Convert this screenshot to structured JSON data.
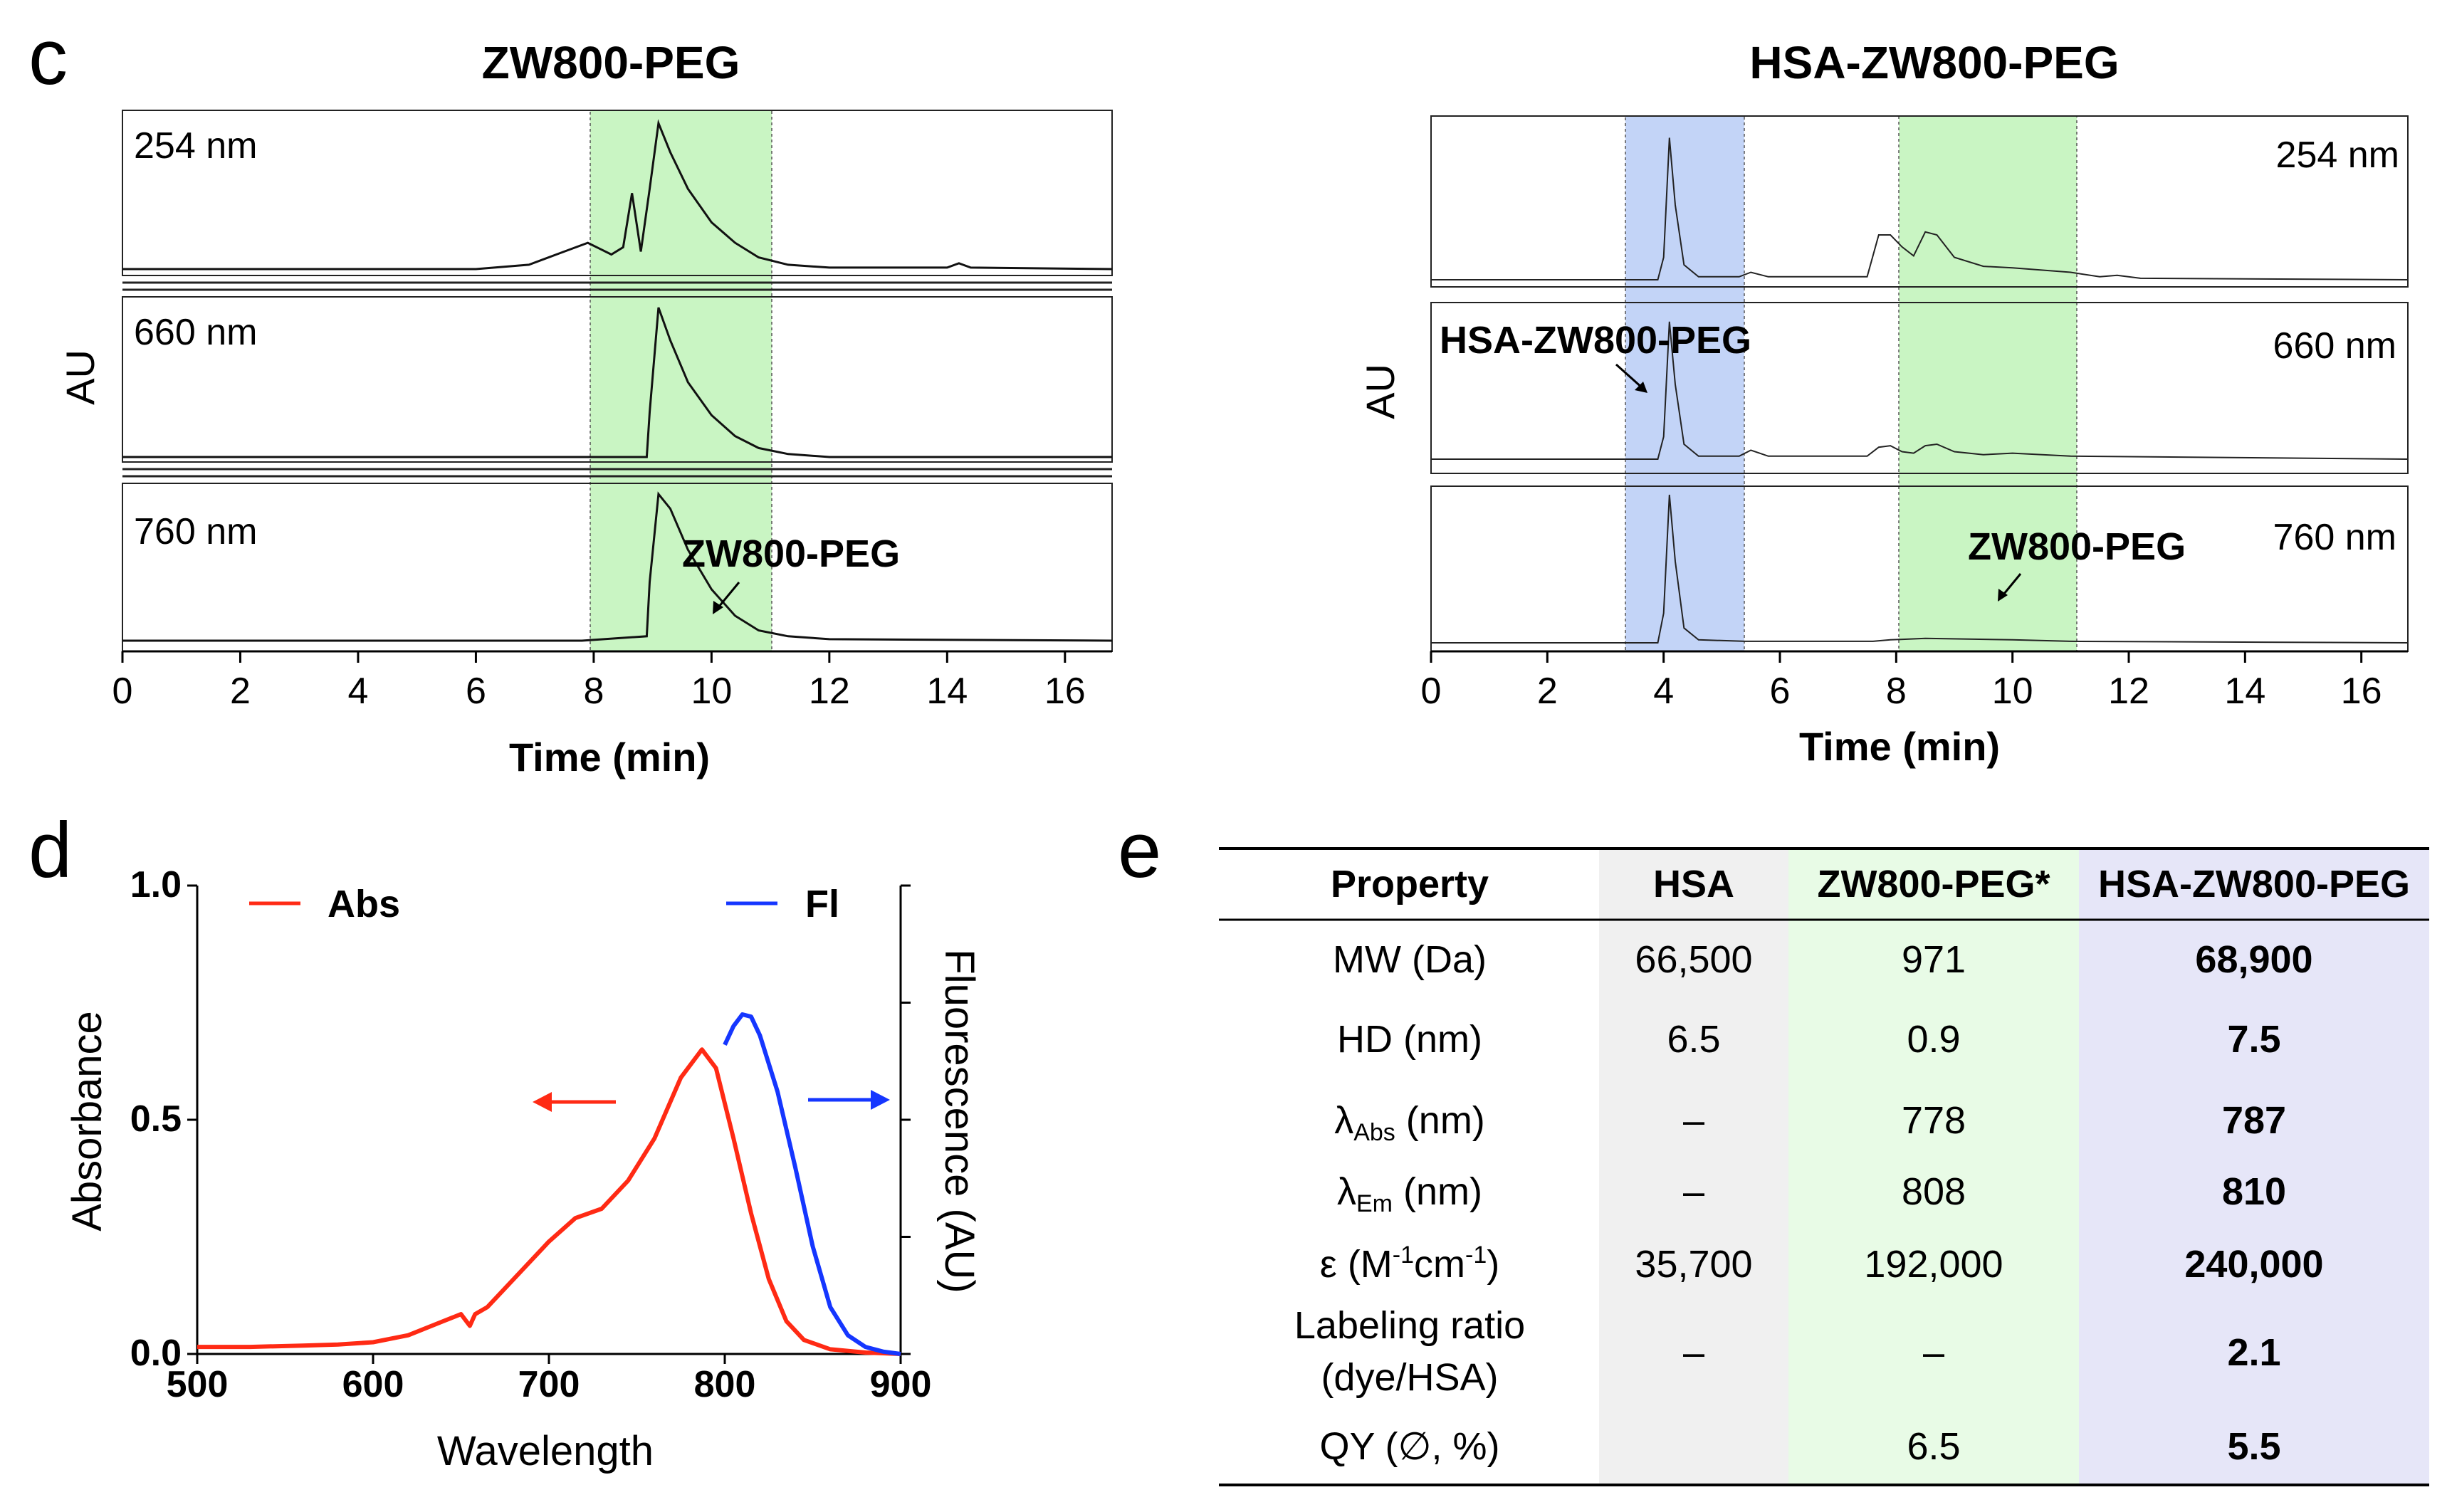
{
  "panels": {
    "c": "c",
    "d": "d",
    "e": "e"
  },
  "colors": {
    "green_band": "#c9f5c3",
    "blue_band": "#c3d4f7",
    "abs": "#ff2a14",
    "fl": "#1536ff",
    "col_hsa": "#f0f0f0",
    "col_zw": "#e8fbe6",
    "col_hsazw": "#e6e6f8"
  },
  "chart_data": [
    {
      "id": "hplc-zw800-peg",
      "type": "line",
      "title": "ZW800-PEG",
      "xlabel": "Time (min)",
      "ylabel": "AU",
      "xlim": [
        0,
        16.8
      ],
      "x_ticks": [
        "0",
        "2",
        "4",
        "6",
        "8",
        "10",
        "12",
        "14",
        "16"
      ],
      "highlight_ranges": [
        {
          "from": 8.1,
          "to": 11.2,
          "color": "green"
        }
      ],
      "channels": [
        {
          "label": "254 nm",
          "trace": [
            [
              0,
              0
            ],
            [
              6.0,
              0
            ],
            [
              6.9,
              0.03
            ],
            [
              7.5,
              0.12
            ],
            [
              7.9,
              0.18
            ],
            [
              8.1,
              0.14
            ],
            [
              8.3,
              0.1
            ],
            [
              8.5,
              0.15
            ],
            [
              8.65,
              0.52
            ],
            [
              8.8,
              0.12
            ],
            [
              8.95,
              0.55
            ],
            [
              9.1,
              1.0
            ],
            [
              9.3,
              0.8
            ],
            [
              9.6,
              0.55
            ],
            [
              10.0,
              0.32
            ],
            [
              10.4,
              0.18
            ],
            [
              10.8,
              0.08
            ],
            [
              11.3,
              0.03
            ],
            [
              12,
              0.01
            ],
            [
              14.0,
              0.01
            ],
            [
              14.2,
              0.04
            ],
            [
              14.4,
              0.01
            ],
            [
              16.8,
              0
            ]
          ]
        },
        {
          "label": "660 nm",
          "trace": [
            [
              0,
              0
            ],
            [
              8.9,
              0
            ],
            [
              8.95,
              0.3
            ],
            [
              9.1,
              1.0
            ],
            [
              9.3,
              0.78
            ],
            [
              9.6,
              0.5
            ],
            [
              10.0,
              0.28
            ],
            [
              10.4,
              0.14
            ],
            [
              10.8,
              0.06
            ],
            [
              11.3,
              0.02
            ],
            [
              12,
              0
            ],
            [
              16.8,
              0
            ]
          ]
        },
        {
          "label": "760 nm",
          "trace": [
            [
              0,
              0
            ],
            [
              7.8,
              0
            ],
            [
              8.9,
              0.03
            ],
            [
              8.95,
              0.4
            ],
            [
              9.1,
              1.0
            ],
            [
              9.3,
              0.9
            ],
            [
              9.6,
              0.62
            ],
            [
              10.0,
              0.35
            ],
            [
              10.4,
              0.17
            ],
            [
              10.8,
              0.07
            ],
            [
              11.3,
              0.03
            ],
            [
              12,
              0.01
            ],
            [
              16.8,
              0
            ]
          ]
        }
      ],
      "annotations": [
        {
          "text": "ZW800-PEG",
          "channel": "760 nm"
        }
      ]
    },
    {
      "id": "hplc-hsa-zw800-peg",
      "type": "line",
      "title": "HSA-ZW800-PEG",
      "xlabel": "Time (min)",
      "ylabel": "AU",
      "xlim": [
        0,
        16.8
      ],
      "x_ticks": [
        "0",
        "2",
        "4",
        "6",
        "8",
        "10",
        "12",
        "14",
        "16"
      ],
      "highlight_ranges": [
        {
          "from": 3.3,
          "to": 5.4,
          "color": "blue"
        },
        {
          "from": 8.05,
          "to": 11.1,
          "color": "green"
        }
      ],
      "channels": [
        {
          "label": "254 nm",
          "trace": [
            [
              0,
              0
            ],
            [
              3.9,
              0
            ],
            [
              4.0,
              0.15
            ],
            [
              4.1,
              0.95
            ],
            [
              4.2,
              0.5
            ],
            [
              4.35,
              0.1
            ],
            [
              4.6,
              0.02
            ],
            [
              5.3,
              0.02
            ],
            [
              5.5,
              0.05
            ],
            [
              5.8,
              0.02
            ],
            [
              7.5,
              0.02
            ],
            [
              7.7,
              0.3
            ],
            [
              7.9,
              0.3
            ],
            [
              8.1,
              0.22
            ],
            [
              8.3,
              0.16
            ],
            [
              8.5,
              0.32
            ],
            [
              8.7,
              0.3
            ],
            [
              9.0,
              0.15
            ],
            [
              9.5,
              0.09
            ],
            [
              10.0,
              0.08
            ],
            [
              11.0,
              0.05
            ],
            [
              11.5,
              0.02
            ],
            [
              11.8,
              0.03
            ],
            [
              12.2,
              0.01
            ],
            [
              16.8,
              0
            ]
          ]
        },
        {
          "label": "660 nm",
          "trace": [
            [
              0,
              0
            ],
            [
              3.9,
              0
            ],
            [
              4.0,
              0.15
            ],
            [
              4.1,
              0.92
            ],
            [
              4.2,
              0.5
            ],
            [
              4.35,
              0.1
            ],
            [
              4.6,
              0.02
            ],
            [
              5.3,
              0.02
            ],
            [
              5.5,
              0.06
            ],
            [
              5.8,
              0.02
            ],
            [
              7.5,
              0.02
            ],
            [
              7.7,
              0.08
            ],
            [
              7.9,
              0.09
            ],
            [
              8.1,
              0.05
            ],
            [
              8.3,
              0.04
            ],
            [
              8.5,
              0.09
            ],
            [
              8.7,
              0.1
            ],
            [
              9.0,
              0.05
            ],
            [
              9.5,
              0.03
            ],
            [
              10.0,
              0.04
            ],
            [
              11.0,
              0.02
            ],
            [
              16.8,
              0
            ]
          ]
        },
        {
          "label": "760 nm",
          "trace": [
            [
              0,
              0
            ],
            [
              3.9,
              0
            ],
            [
              4.0,
              0.2
            ],
            [
              4.1,
              1.0
            ],
            [
              4.2,
              0.55
            ],
            [
              4.35,
              0.1
            ],
            [
              4.6,
              0.02
            ],
            [
              5.4,
              0.01
            ],
            [
              7.6,
              0.01
            ],
            [
              7.9,
              0.02
            ],
            [
              8.5,
              0.03
            ],
            [
              10,
              0.02
            ],
            [
              11,
              0.01
            ],
            [
              16.8,
              0
            ]
          ]
        }
      ],
      "annotations": [
        {
          "text": "HSA-ZW800-PEG",
          "channel": "660 nm"
        },
        {
          "text": "ZW800-PEG",
          "channel": "760 nm"
        }
      ]
    },
    {
      "id": "spectra",
      "type": "line",
      "title": "",
      "xlabel": "Wavelength",
      "ylabel": "Absorbance",
      "y2label": "Fluorescence (AU)",
      "xlim": [
        500,
        900
      ],
      "ylim": [
        0,
        1.0
      ],
      "x_ticks": [
        "500",
        "600",
        "700",
        "800",
        "900"
      ],
      "y_ticks": [
        "0.0",
        "0.5",
        "1.0"
      ],
      "legend": "top",
      "series": [
        {
          "name": "Abs",
          "color": "red",
          "axis": "left",
          "points": [
            [
              500,
              0.015
            ],
            [
              530,
              0.015
            ],
            [
              560,
              0.018
            ],
            [
              580,
              0.02
            ],
            [
              600,
              0.025
            ],
            [
              620,
              0.04
            ],
            [
              640,
              0.07
            ],
            [
              650,
              0.085
            ],
            [
              655,
              0.06
            ],
            [
              658,
              0.085
            ],
            [
              665,
              0.1
            ],
            [
              680,
              0.16
            ],
            [
              700,
              0.24
            ],
            [
              715,
              0.29
            ],
            [
              730,
              0.31
            ],
            [
              745,
              0.37
            ],
            [
              760,
              0.46
            ],
            [
              775,
              0.59
            ],
            [
              787,
              0.65
            ],
            [
              795,
              0.61
            ],
            [
              805,
              0.46
            ],
            [
              815,
              0.3
            ],
            [
              825,
              0.16
            ],
            [
              835,
              0.07
            ],
            [
              845,
              0.03
            ],
            [
              860,
              0.01
            ],
            [
              880,
              0.003
            ],
            [
              900,
              0
            ]
          ]
        },
        {
          "name": "Fl",
          "color": "blue",
          "axis": "right",
          "points": [
            [
              800,
              0.66
            ],
            [
              805,
              0.7
            ],
            [
              810,
              0.725
            ],
            [
              815,
              0.72
            ],
            [
              820,
              0.68
            ],
            [
              830,
              0.56
            ],
            [
              840,
              0.4
            ],
            [
              850,
              0.23
            ],
            [
              860,
              0.1
            ],
            [
              870,
              0.04
            ],
            [
              880,
              0.015
            ],
            [
              890,
              0.005
            ],
            [
              900,
              0
            ]
          ]
        }
      ]
    }
  ],
  "table": {
    "headers": [
      "Property",
      "HSA",
      "ZW800-PEG*",
      "HSA-ZW800-PEG"
    ],
    "rows": [
      {
        "property": "MW (Da)",
        "hsa": "66,500",
        "zw": "971",
        "hsazw": "68,900"
      },
      {
        "property": "HD (nm)",
        "hsa": "6.5",
        "zw": "0.9",
        "hsazw": "7.5"
      },
      {
        "property_main": "λ",
        "property_sub": "Abs",
        "property_rest": " (nm)",
        "hsa": "–",
        "zw": "778",
        "hsazw": "787"
      },
      {
        "property_main": "λ",
        "property_sub": "Em",
        "property_rest": " (nm)",
        "hsa": "–",
        "zw": "808",
        "hsazw": "810"
      },
      {
        "property_main": "ε (M",
        "property_sup1": "-1",
        "property_mid": "cm",
        "property_sup2": "-1",
        "property_rest": ")",
        "hsa": "35,700",
        "zw": "192,000",
        "hsazw": "240,000"
      },
      {
        "property_line1": "Labeling ratio",
        "property_line2": "(dye/HSA)",
        "hsa": "–",
        "zw": "–",
        "hsazw": "2.1"
      },
      {
        "property": "QY (∅, %)",
        "hsa": "",
        "zw": "6.5",
        "hsazw": "5.5"
      }
    ]
  }
}
